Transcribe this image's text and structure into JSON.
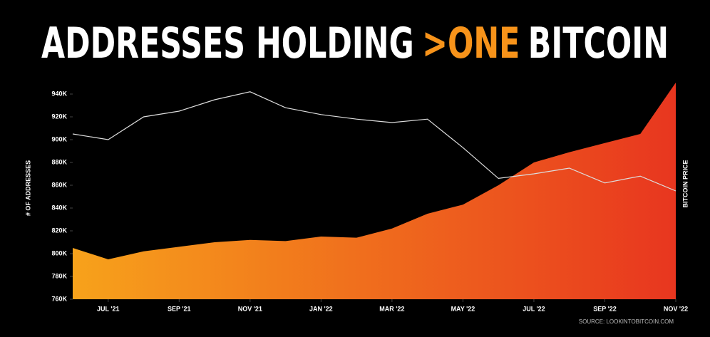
{
  "chart_data": {
    "type": "area",
    "title_parts": [
      "ADDRESSES HOLDING",
      ">ONE",
      "BITCOIN"
    ],
    "title_colors": [
      "#ffffff",
      "#f7931a",
      "#ffffff"
    ],
    "y_label": "# OF ADDRESSES",
    "y2_label": "BITCOIN PRICE",
    "source": "SOURCE: LOOKINTOBITCOIN.COM",
    "x": [
      "2021-06",
      "2021-07",
      "2021-08",
      "2021-09",
      "2021-10",
      "2021-11",
      "2021-12",
      "2022-01",
      "2022-02",
      "2022-03",
      "2022-04",
      "2022-05",
      "2022-06",
      "2022-07",
      "2022-08",
      "2022-09",
      "2022-10",
      "2022-11"
    ],
    "xticks": [
      {
        "value": "2021-07",
        "label": "JUL '21"
      },
      {
        "value": "2021-09",
        "label": "SEP '21"
      },
      {
        "value": "2021-11",
        "label": "NOV '21"
      },
      {
        "value": "2022-01",
        "label": "JAN '22"
      },
      {
        "value": "2022-03",
        "label": "MAR '22"
      },
      {
        "value": "2022-05",
        "label": "MAY '22"
      },
      {
        "value": "2022-07",
        "label": "JUL '22"
      },
      {
        "value": "2022-09",
        "label": "SEP '22"
      },
      {
        "value": "2022-11",
        "label": "NOV '22"
      }
    ],
    "ylim": [
      760000,
      955000
    ],
    "yticks": [
      {
        "value": 760000,
        "label": "760K"
      },
      {
        "value": 780000,
        "label": "780K"
      },
      {
        "value": 800000,
        "label": "800K"
      },
      {
        "value": 820000,
        "label": "820K"
      },
      {
        "value": 840000,
        "label": "840K"
      },
      {
        "value": 860000,
        "label": "860K"
      },
      {
        "value": 880000,
        "label": "880K"
      },
      {
        "value": 900000,
        "label": "900K"
      },
      {
        "value": 920000,
        "label": "920K"
      },
      {
        "value": 940000,
        "label": "940K"
      }
    ],
    "series": [
      {
        "type": "area",
        "colors": [
          "#f7a21b",
          "#e8361f"
        ],
        "values": [
          805000,
          795000,
          802000,
          806000,
          810000,
          812000,
          811000,
          815000,
          814000,
          822000,
          835000,
          843000,
          860000,
          880000,
          889000,
          897000,
          905000,
          950000
        ]
      },
      {
        "type": "line",
        "color": "#dddddd",
        "values": [
          905000,
          900000,
          920000,
          925000,
          935000,
          942000,
          928000,
          922000,
          918000,
          915000,
          918000,
          893000,
          866000,
          870000,
          875000,
          862000,
          868000,
          855000
        ]
      }
    ]
  }
}
